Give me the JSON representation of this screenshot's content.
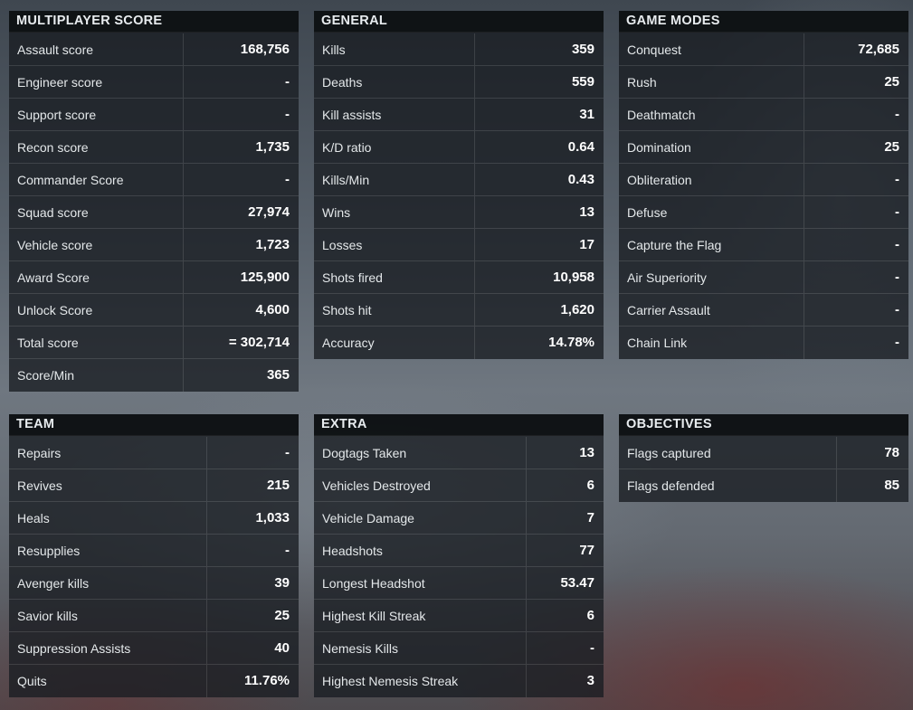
{
  "panels": [
    {
      "title": "MULTIPLAYER SCORE",
      "rows": [
        {
          "label": "Assault score",
          "value": "168,756"
        },
        {
          "label": "Engineer score",
          "value": "-"
        },
        {
          "label": "Support score",
          "value": "-"
        },
        {
          "label": "Recon score",
          "value": "1,735"
        },
        {
          "label": "Commander Score",
          "value": "-"
        },
        {
          "label": "Squad score",
          "value": "27,974"
        },
        {
          "label": "Vehicle score",
          "value": "1,723"
        },
        {
          "label": "Award Score",
          "value": "125,900"
        },
        {
          "label": "Unlock Score",
          "value": "4,600"
        },
        {
          "label": "Total score",
          "value": "= 302,714"
        },
        {
          "label": "Score/Min",
          "value": "365"
        }
      ]
    },
    {
      "title": "GENERAL",
      "rows": [
        {
          "label": "Kills",
          "value": "359"
        },
        {
          "label": "Deaths",
          "value": "559"
        },
        {
          "label": "Kill assists",
          "value": "31"
        },
        {
          "label": "K/D ratio",
          "value": "0.64"
        },
        {
          "label": "Kills/Min",
          "value": "0.43"
        },
        {
          "label": "Wins",
          "value": "13"
        },
        {
          "label": "Losses",
          "value": "17"
        },
        {
          "label": "Shots fired",
          "value": "10,958"
        },
        {
          "label": "Shots hit",
          "value": "1,620"
        },
        {
          "label": "Accuracy",
          "value": "14.78%"
        }
      ]
    },
    {
      "title": "GAME MODES",
      "rows": [
        {
          "label": "Conquest",
          "value": "72,685"
        },
        {
          "label": "Rush",
          "value": "25"
        },
        {
          "label": "Deathmatch",
          "value": "-"
        },
        {
          "label": "Domination",
          "value": "25"
        },
        {
          "label": "Obliteration",
          "value": "-"
        },
        {
          "label": "Defuse",
          "value": "-"
        },
        {
          "label": "Capture the Flag",
          "value": "-"
        },
        {
          "label": "Air Superiority",
          "value": "-"
        },
        {
          "label": "Carrier Assault",
          "value": "-"
        },
        {
          "label": "Chain Link",
          "value": "-"
        }
      ]
    },
    {
      "title": "TEAM",
      "rows": [
        {
          "label": "Repairs",
          "value": "-"
        },
        {
          "label": "Revives",
          "value": "215"
        },
        {
          "label": "Heals",
          "value": "1,033"
        },
        {
          "label": "Resupplies",
          "value": "-"
        },
        {
          "label": "Avenger kills",
          "value": "39"
        },
        {
          "label": "Savior kills",
          "value": "25"
        },
        {
          "label": "Suppression Assists",
          "value": "40"
        },
        {
          "label": "Quits",
          "value": "11.76%"
        }
      ]
    },
    {
      "title": "EXTRA",
      "rows": [
        {
          "label": "Dogtags Taken",
          "value": "13"
        },
        {
          "label": "Vehicles Destroyed",
          "value": "6"
        },
        {
          "label": "Vehicle Damage",
          "value": "7"
        },
        {
          "label": "Headshots",
          "value": "77"
        },
        {
          "label": "Longest Headshot",
          "value": "53.47"
        },
        {
          "label": "Highest Kill Streak",
          "value": "6"
        },
        {
          "label": "Nemesis Kills",
          "value": "-"
        },
        {
          "label": "Highest Nemesis Streak",
          "value": "3"
        }
      ]
    },
    {
      "title": "OBJECTIVES",
      "rows": [
        {
          "label": "Flags captured",
          "value": "78"
        },
        {
          "label": "Flags defended",
          "value": "85"
        }
      ]
    }
  ]
}
